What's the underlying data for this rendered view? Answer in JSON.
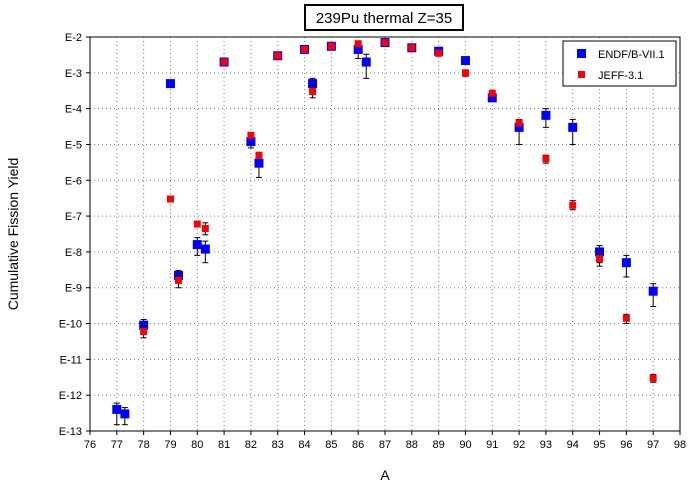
{
  "chart_data": {
    "type": "scatter",
    "title": "239Pu thermal Z=35",
    "xlabel": "A",
    "ylabel": "Cumulative Fission Yield",
    "xlim": [
      76,
      98
    ],
    "ylim_exponent": [
      -13,
      -2
    ],
    "y_scale": "log",
    "x_ticks": [
      "76",
      "77",
      "78",
      "79",
      "80",
      "81",
      "82",
      "83",
      "84",
      "85",
      "86",
      "87",
      "88",
      "89",
      "90",
      "91",
      "92",
      "93",
      "94",
      "95",
      "96",
      "97",
      "98"
    ],
    "y_ticks": [
      "E-13",
      "E-12",
      "E-11",
      "E-10",
      "E-9",
      "E-8",
      "E-7",
      "E-6",
      "E-5",
      "E-4",
      "E-3",
      "E-2"
    ],
    "grid": true,
    "legend_position": "top-right",
    "series": [
      {
        "name": "ENDF/B-VII.1",
        "color": "#0000ff",
        "marker": "square",
        "points": [
          {
            "x": 77.0,
            "y": 4e-13,
            "err_lo": 1.5e-13,
            "err_hi": 6e-13
          },
          {
            "x": 77.3,
            "y": 3e-13,
            "err_lo": 1.5e-13,
            "err_hi": 4.5e-13
          },
          {
            "x": 78.0,
            "y": 9e-11,
            "err_lo": 5e-11,
            "err_hi": 1.3e-10
          },
          {
            "x": 79.0,
            "y": 0.0005
          },
          {
            "x": 79.3,
            "y": 2.2e-09,
            "err_lo": 1.5e-09,
            "err_hi": 3e-09
          },
          {
            "x": 80.0,
            "y": 1.6e-08,
            "err_lo": 8e-09,
            "err_hi": 2.5e-08
          },
          {
            "x": 80.3,
            "y": 1.2e-08,
            "err_lo": 5e-09,
            "err_hi": 2e-08
          },
          {
            "x": 81.0,
            "y": 0.002
          },
          {
            "x": 82.0,
            "y": 1.2e-05,
            "err_lo": 8e-06,
            "err_hi": 1.6e-05
          },
          {
            "x": 82.3,
            "y": 3e-06,
            "err_lo": 1.2e-06,
            "err_hi": 5e-06
          },
          {
            "x": 83.0,
            "y": 0.003
          },
          {
            "x": 84.0,
            "y": 0.0045
          },
          {
            "x": 84.3,
            "y": 0.0005,
            "err_lo": 0.0003,
            "err_hi": 0.0007
          },
          {
            "x": 85.0,
            "y": 0.0055
          },
          {
            "x": 86.0,
            "y": 0.0045,
            "err_lo": 0.0025,
            "err_hi": 0.0065
          },
          {
            "x": 86.3,
            "y": 0.002,
            "err_lo": 0.0007,
            "err_hi": 0.0033
          },
          {
            "x": 87.0,
            "y": 0.007
          },
          {
            "x": 88.0,
            "y": 0.005
          },
          {
            "x": 89.0,
            "y": 0.004
          },
          {
            "x": 90.0,
            "y": 0.0022
          },
          {
            "x": 91.0,
            "y": 0.0002
          },
          {
            "x": 92.0,
            "y": 3e-05,
            "err_lo": 1e-05,
            "err_hi": 5e-05
          },
          {
            "x": 93.0,
            "y": 6.5e-05,
            "err_lo": 3e-05,
            "err_hi": 0.0001
          },
          {
            "x": 94.0,
            "y": 3e-05,
            "err_lo": 1e-05,
            "err_hi": 5e-05
          },
          {
            "x": 95.0,
            "y": 1e-08,
            "err_lo": 5e-09,
            "err_hi": 1.5e-08
          },
          {
            "x": 96.0,
            "y": 5e-09,
            "err_lo": 2e-09,
            "err_hi": 8e-09
          },
          {
            "x": 97.0,
            "y": 8e-10,
            "err_lo": 3e-10,
            "err_hi": 1.3e-09
          }
        ]
      },
      {
        "name": "JEFF-3.1",
        "color": "#ff0000",
        "marker": "square-small",
        "points": [
          {
            "x": 78.0,
            "y": 6e-11,
            "err_lo": 4e-11,
            "err_hi": 8e-11
          },
          {
            "x": 79.0,
            "y": 3e-07
          },
          {
            "x": 79.3,
            "y": 1.6e-09,
            "err_lo": 1e-09,
            "err_hi": 2.2e-09
          },
          {
            "x": 80.0,
            "y": 6e-08
          },
          {
            "x": 80.3,
            "y": 4.5e-08,
            "err_lo": 3e-08,
            "err_hi": 6.5e-08
          },
          {
            "x": 81.0,
            "y": 0.002
          },
          {
            "x": 82.0,
            "y": 1.8e-05
          },
          {
            "x": 82.3,
            "y": 5e-06
          },
          {
            "x": 83.0,
            "y": 0.003
          },
          {
            "x": 84.0,
            "y": 0.0045
          },
          {
            "x": 84.3,
            "y": 0.0003,
            "err_lo": 0.0002,
            "err_hi": 0.00045
          },
          {
            "x": 85.0,
            "y": 0.0055
          },
          {
            "x": 86.0,
            "y": 0.0065
          },
          {
            "x": 87.0,
            "y": 0.007
          },
          {
            "x": 88.0,
            "y": 0.005
          },
          {
            "x": 89.0,
            "y": 0.0035
          },
          {
            "x": 90.0,
            "y": 0.001,
            "err_lo": 0.0008,
            "err_hi": 0.0012
          },
          {
            "x": 91.0,
            "y": 0.00027
          },
          {
            "x": 92.0,
            "y": 4e-05
          },
          {
            "x": 93.0,
            "y": 4e-06,
            "err_lo": 3e-06,
            "err_hi": 5e-06
          },
          {
            "x": 94.0,
            "y": 2e-07,
            "err_lo": 1.5e-07,
            "err_hi": 2.7e-07
          },
          {
            "x": 95.0,
            "y": 6.5e-09,
            "err_lo": 4e-09,
            "err_hi": 9e-09
          },
          {
            "x": 96.0,
            "y": 1.4e-10,
            "err_lo": 1e-10,
            "err_hi": 1.8e-10
          },
          {
            "x": 97.0,
            "y": 3e-12,
            "err_lo": 2.3e-12,
            "err_hi": 3.8e-12
          }
        ]
      }
    ]
  }
}
